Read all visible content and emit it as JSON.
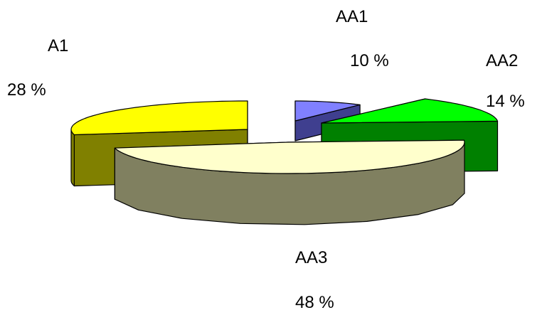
{
  "chart_data": {
    "type": "pie",
    "style": "3d-exploded",
    "title": "",
    "slices": [
      {
        "label": "AA1",
        "value": 10,
        "value_label": "10  %",
        "color": "#8080FF",
        "side_color": "#3F3F8F"
      },
      {
        "label": "AA2",
        "value": 14,
        "value_label": "14  %",
        "color": "#00FF00",
        "side_color": "#008000"
      },
      {
        "label": "AA3",
        "value": 48,
        "value_label": "48  %",
        "color": "#FFFFCC",
        "side_color": "#808060"
      },
      {
        "label": "A1",
        "value": 28,
        "value_label": "28  %",
        "color": "#FFFF00",
        "side_color": "#808000"
      }
    ]
  }
}
